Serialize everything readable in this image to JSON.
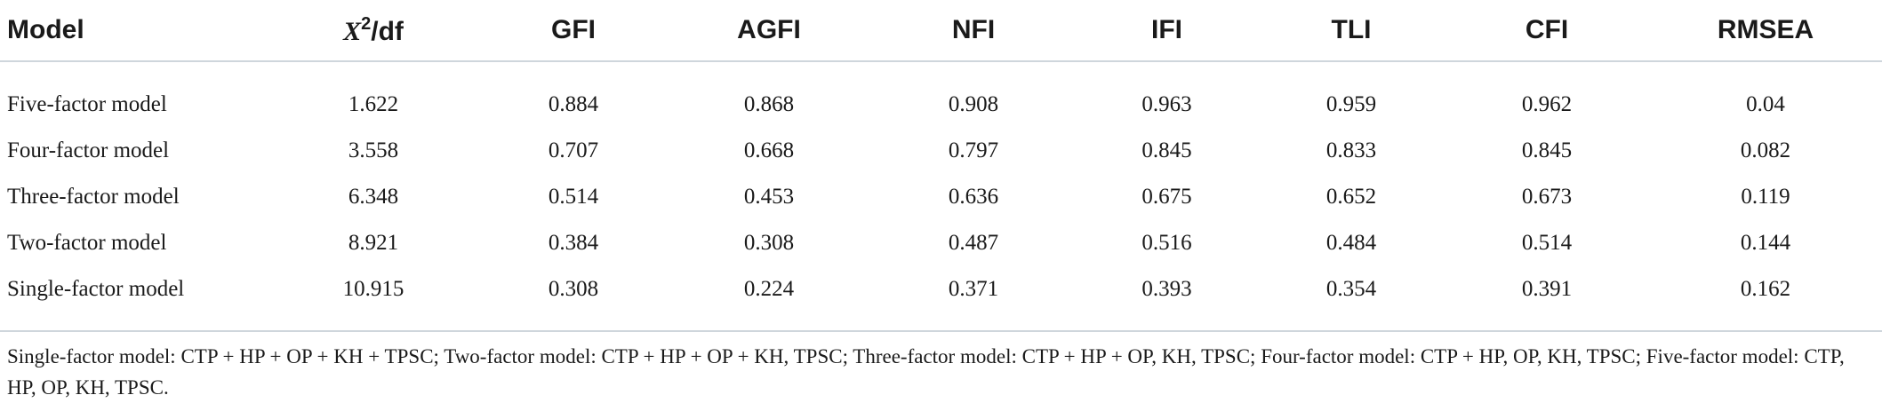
{
  "table": {
    "headers": {
      "model": "Model",
      "chi_symbol": "X",
      "chi_sup": "2",
      "chi_rest": "/df",
      "gfi": "GFI",
      "agfi": "AGFI",
      "nfi": "NFI",
      "ifi": "IFI",
      "tli": "TLI",
      "cfi": "CFI",
      "rmsea": "RMSEA"
    },
    "rows": [
      [
        "Five-factor model",
        "1.622",
        "0.884",
        "0.868",
        "0.908",
        "0.963",
        "0.959",
        "0.962",
        "0.04"
      ],
      [
        "Four-factor model",
        "3.558",
        "0.707",
        "0.668",
        "0.797",
        "0.845",
        "0.833",
        "0.845",
        "0.082"
      ],
      [
        "Three-factor model",
        "6.348",
        "0.514",
        "0.453",
        "0.636",
        "0.675",
        "0.652",
        "0.673",
        "0.119"
      ],
      [
        "Two-factor model",
        "8.921",
        "0.384",
        "0.308",
        "0.487",
        "0.516",
        "0.484",
        "0.514",
        "0.144"
      ],
      [
        "Single-factor model",
        "10.915",
        "0.308",
        "0.224",
        "0.371",
        "0.393",
        "0.354",
        "0.391",
        "0.162"
      ]
    ]
  },
  "footnote": "Single-factor model: CTP + HP + OP + KH + TPSC; Two-factor model: CTP + HP + OP + KH, TPSC; Three-factor model: CTP + HP + OP, KH, TPSC; Four-factor model: CTP + HP, OP, KH, TPSC; Five-factor model: CTP, HP, OP, KH, TPSC."
}
